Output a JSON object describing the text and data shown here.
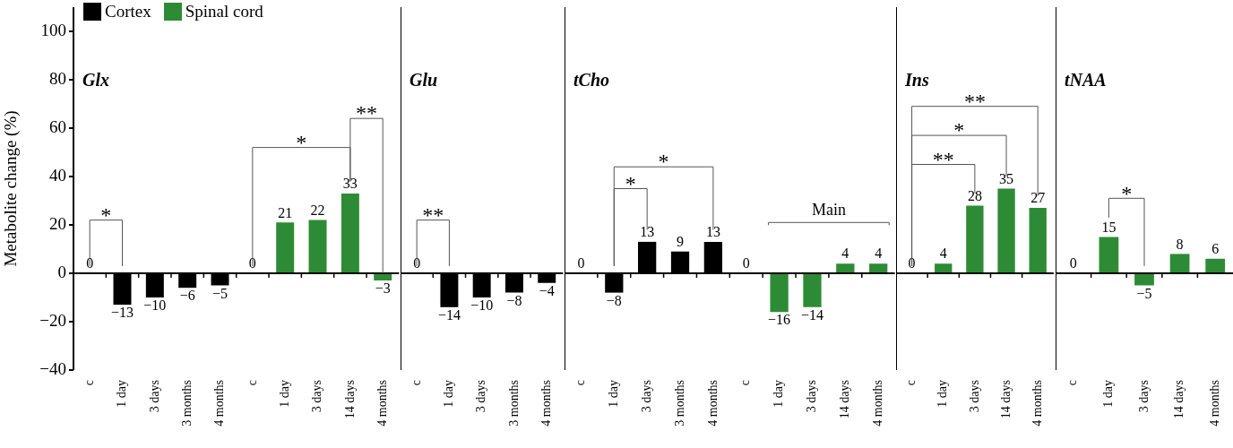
{
  "chart_data": [
    {
      "type": "bar",
      "title": "Glx",
      "ylabel": "Metabolite change (%)",
      "legend": "top left",
      "categories": [
        "c",
        "1 day",
        "3 days",
        "3 months",
        "4 months",
        "c",
        "1 day",
        "3 days",
        "14 days",
        "4 months"
      ],
      "series": [
        {
          "name": "Cortex",
          "color": "#000000",
          "values": [
            0,
            -13,
            -10,
            -6,
            -5,
            null,
            null,
            null,
            null,
            null
          ],
          "value_labels": [
            "0",
            "−13",
            "−10",
            "−6",
            "−5",
            null,
            null,
            null,
            null,
            null
          ]
        },
        {
          "name": "Spinal cord",
          "color": "#2e8b35",
          "values": [
            null,
            null,
            null,
            null,
            null,
            0,
            21,
            22,
            33,
            -3
          ],
          "value_labels": [
            null,
            null,
            null,
            null,
            null,
            "0",
            "21",
            "22",
            "33",
            "−3"
          ]
        }
      ],
      "ylim": [
        -40,
        110
      ],
      "yticks": [
        {
          "value": -40,
          "label": "−40"
        },
        {
          "value": -20,
          "label": "−20"
        },
        0,
        20,
        40,
        60,
        80,
        100
      ],
      "annotations": [
        "*",
        "*",
        "**"
      ]
    },
    {
      "type": "bar",
      "title": "Glu",
      "tick_labels": "x",
      "categories": [
        "c",
        "1 day",
        "3 days",
        "3 months",
        "4 months"
      ],
      "series": [
        {
          "color": "#000000",
          "values": [
            0,
            -14,
            -10,
            -8,
            -4
          ],
          "value_labels": [
            "0",
            "−14",
            "−10",
            "−8",
            "−4"
          ]
        }
      ],
      "ylim": [
        -40,
        110
      ],
      "annotations": [
        "**"
      ]
    },
    {
      "type": "bar",
      "title": "tCho",
      "tick_labels": "x",
      "categories": [
        "c",
        "1 day",
        "3 days",
        "3 months",
        "4 months",
        "c",
        "1 day",
        "3 days",
        "14 days",
        "4 months"
      ],
      "series": [
        {
          "color": "#000000",
          "values": [
            0,
            -8,
            13,
            9,
            13,
            null,
            null,
            null,
            null,
            null
          ],
          "value_labels": [
            "0",
            "−8",
            "13",
            "9",
            "13",
            null,
            null,
            null,
            null,
            null
          ]
        },
        {
          "color": "#2e8b35",
          "values": [
            null,
            null,
            null,
            null,
            null,
            0,
            -16,
            -14,
            4,
            4
          ],
          "value_labels": [
            null,
            null,
            null,
            null,
            null,
            "0",
            "−16",
            "−14",
            "4",
            "4"
          ]
        }
      ],
      "ylim": [
        -40,
        110
      ],
      "annotations": [
        "*",
        "*",
        "Main"
      ]
    },
    {
      "type": "bar",
      "title": "Ins",
      "tick_labels": "x",
      "categories": [
        "c",
        "1 day",
        "3 days",
        "14 days",
        "4 months"
      ],
      "series": [
        {
          "color": "#2e8b35",
          "values": [
            0,
            4,
            28,
            35,
            27
          ],
          "value_labels": [
            "0",
            "4",
            "28",
            "35",
            "27"
          ]
        }
      ],
      "ylim": [
        -40,
        110
      ],
      "annotations": [
        "**",
        "*",
        "**"
      ]
    },
    {
      "type": "bar",
      "title": "tNAA",
      "tick_labels": "x",
      "categories": [
        "c",
        "1 day",
        "3 days",
        "14 days",
        "4 months"
      ],
      "series": [
        {
          "color": "#2e8b35",
          "values": [
            0,
            15,
            -5,
            8,
            6
          ],
          "value_labels": [
            "0",
            "15",
            "−5",
            "8",
            "6"
          ]
        }
      ],
      "ylim": [
        -40,
        110
      ],
      "annotations": [
        "*"
      ]
    }
  ]
}
